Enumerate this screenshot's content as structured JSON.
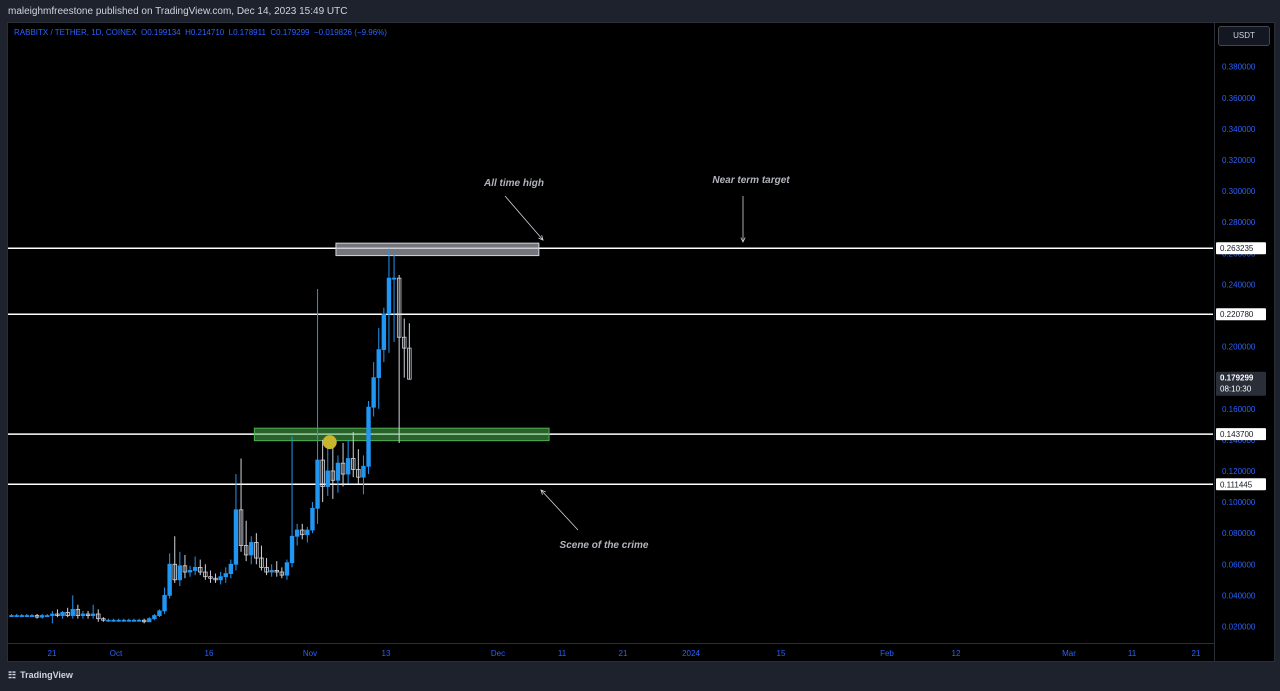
{
  "header": {
    "publisher_text": "maleighmfreestone published on TradingView.com, Dec 14, 2023 15:49 UTC"
  },
  "symbol": {
    "name": "RABBITX / TETHER, 1D, COINEX",
    "o_label": "O",
    "o_value": "0.199134",
    "h_label": "H",
    "h_value": "0.214710",
    "l_label": "L",
    "l_value": "0.178911",
    "c_label": "C",
    "c_value": "0.179299",
    "change": "−0.019826 (−9.96%)"
  },
  "currency_button": "USDT",
  "footer": {
    "logo_icon": "tradingview-logo-icon",
    "brand": "TradingView"
  },
  "colors": {
    "up": "#2196f3",
    "down": "#d1d4dc",
    "support_zone": "#4caf50",
    "target_zone": "#b2b5be",
    "highlight_dot": "#c9b52b"
  },
  "chart_data": {
    "type": "candlestick",
    "title": "RABBITX / TETHER, 1D, COINEX",
    "xlabel": "",
    "ylabel": "",
    "ylim": [
      0.01,
      0.392
    ],
    "y_ticks": [
      "0.380000",
      "0.360000",
      "0.340000",
      "0.320000",
      "0.300000",
      "0.280000",
      "0.260000",
      "0.240000",
      "0.220000",
      "0.200000",
      "0.180000",
      "0.160000",
      "0.140000",
      "0.120000",
      "0.100000",
      "0.080000",
      "0.060000",
      "0.040000",
      "0.020000"
    ],
    "x_ticks": [
      "21",
      "Oct",
      "16",
      "Nov",
      "13",
      "Dec",
      "11",
      "21",
      "2024",
      "15",
      "Feb",
      "12",
      "Mar",
      "11",
      "21"
    ],
    "horizontal_levels": [
      {
        "value": 0.263235,
        "label": "0.263235"
      },
      {
        "value": 0.22078,
        "label": "0.220780"
      },
      {
        "value": 0.1437,
        "label": "0.143700"
      },
      {
        "value": 0.111445,
        "label": "0.111445"
      }
    ],
    "last_price": {
      "value": 0.179299,
      "label": "0.179299",
      "countdown": "08:10:30"
    },
    "zones": [
      {
        "name": "support",
        "from": 0.1395,
        "to": 0.1475,
        "start_index": 48,
        "end_index": 105
      },
      {
        "name": "target",
        "from": 0.2585,
        "to": 0.2665,
        "start_index": 64,
        "end_index": 103
      }
    ],
    "annotations": [
      {
        "text": "All time high",
        "arrow_to_index": 60,
        "arrow_to_value": 0.263
      },
      {
        "text": "Near term target",
        "arrow_to_index": 82,
        "arrow_to_value": 0.263
      },
      {
        "text": "Scene of the crime",
        "arrow_to_index": 59,
        "arrow_to_value": 0.11
      }
    ],
    "marker": {
      "index": 62,
      "value": 0.1385
    },
    "candles": [
      {
        "o": 0.027,
        "h": 0.028,
        "l": 0.026,
        "c": 0.027
      },
      {
        "o": 0.027,
        "h": 0.028,
        "l": 0.026,
        "c": 0.027
      },
      {
        "o": 0.027,
        "h": 0.028,
        "l": 0.026,
        "c": 0.027
      },
      {
        "o": 0.027,
        "h": 0.028,
        "l": 0.026,
        "c": 0.027
      },
      {
        "o": 0.027,
        "h": 0.028,
        "l": 0.026,
        "c": 0.027
      },
      {
        "o": 0.027,
        "h": 0.028,
        "l": 0.025,
        "c": 0.026
      },
      {
        "o": 0.026,
        "h": 0.028,
        "l": 0.025,
        "c": 0.027
      },
      {
        "o": 0.027,
        "h": 0.028,
        "l": 0.026,
        "c": 0.027
      },
      {
        "o": 0.027,
        "h": 0.03,
        "l": 0.022,
        "c": 0.028
      },
      {
        "o": 0.028,
        "h": 0.031,
        "l": 0.026,
        "c": 0.027
      },
      {
        "o": 0.027,
        "h": 0.03,
        "l": 0.025,
        "c": 0.029
      },
      {
        "o": 0.029,
        "h": 0.032,
        "l": 0.026,
        "c": 0.027
      },
      {
        "o": 0.027,
        "h": 0.04,
        "l": 0.025,
        "c": 0.031
      },
      {
        "o": 0.031,
        "h": 0.034,
        "l": 0.025,
        "c": 0.027
      },
      {
        "o": 0.027,
        "h": 0.03,
        "l": 0.025,
        "c": 0.028
      },
      {
        "o": 0.028,
        "h": 0.03,
        "l": 0.025,
        "c": 0.027
      },
      {
        "o": 0.027,
        "h": 0.034,
        "l": 0.025,
        "c": 0.028
      },
      {
        "o": 0.028,
        "h": 0.031,
        "l": 0.023,
        "c": 0.025
      },
      {
        "o": 0.025,
        "h": 0.026,
        "l": 0.023,
        "c": 0.024
      },
      {
        "o": 0.024,
        "h": 0.025,
        "l": 0.023,
        "c": 0.024
      },
      {
        "o": 0.024,
        "h": 0.025,
        "l": 0.023,
        "c": 0.024
      },
      {
        "o": 0.024,
        "h": 0.025,
        "l": 0.023,
        "c": 0.024
      },
      {
        "o": 0.024,
        "h": 0.025,
        "l": 0.023,
        "c": 0.024
      },
      {
        "o": 0.024,
        "h": 0.025,
        "l": 0.023,
        "c": 0.024
      },
      {
        "o": 0.024,
        "h": 0.025,
        "l": 0.023,
        "c": 0.024
      },
      {
        "o": 0.024,
        "h": 0.025,
        "l": 0.023,
        "c": 0.024
      },
      {
        "o": 0.024,
        "h": 0.025,
        "l": 0.022,
        "c": 0.023
      },
      {
        "o": 0.023,
        "h": 0.026,
        "l": 0.023,
        "c": 0.025
      },
      {
        "o": 0.025,
        "h": 0.028,
        "l": 0.024,
        "c": 0.027
      },
      {
        "o": 0.027,
        "h": 0.031,
        "l": 0.026,
        "c": 0.03
      },
      {
        "o": 0.03,
        "h": 0.045,
        "l": 0.028,
        "c": 0.04
      },
      {
        "o": 0.04,
        "h": 0.067,
        "l": 0.038,
        "c": 0.06
      },
      {
        "o": 0.06,
        "h": 0.078,
        "l": 0.048,
        "c": 0.05
      },
      {
        "o": 0.05,
        "h": 0.068,
        "l": 0.046,
        "c": 0.059
      },
      {
        "o": 0.059,
        "h": 0.066,
        "l": 0.051,
        "c": 0.055
      },
      {
        "o": 0.055,
        "h": 0.059,
        "l": 0.052,
        "c": 0.056
      },
      {
        "o": 0.056,
        "h": 0.065,
        "l": 0.053,
        "c": 0.058
      },
      {
        "o": 0.058,
        "h": 0.063,
        "l": 0.053,
        "c": 0.055
      },
      {
        "o": 0.055,
        "h": 0.06,
        "l": 0.05,
        "c": 0.052
      },
      {
        "o": 0.052,
        "h": 0.056,
        "l": 0.048,
        "c": 0.051
      },
      {
        "o": 0.051,
        "h": 0.054,
        "l": 0.048,
        "c": 0.05
      },
      {
        "o": 0.05,
        "h": 0.055,
        "l": 0.047,
        "c": 0.052
      },
      {
        "o": 0.052,
        "h": 0.058,
        "l": 0.048,
        "c": 0.054
      },
      {
        "o": 0.054,
        "h": 0.063,
        "l": 0.051,
        "c": 0.06
      },
      {
        "o": 0.06,
        "h": 0.118,
        "l": 0.056,
        "c": 0.095
      },
      {
        "o": 0.095,
        "h": 0.128,
        "l": 0.068,
        "c": 0.072
      },
      {
        "o": 0.072,
        "h": 0.088,
        "l": 0.062,
        "c": 0.066
      },
      {
        "o": 0.066,
        "h": 0.078,
        "l": 0.06,
        "c": 0.074
      },
      {
        "o": 0.074,
        "h": 0.08,
        "l": 0.06,
        "c": 0.064
      },
      {
        "o": 0.064,
        "h": 0.072,
        "l": 0.056,
        "c": 0.058
      },
      {
        "o": 0.058,
        "h": 0.064,
        "l": 0.053,
        "c": 0.055
      },
      {
        "o": 0.055,
        "h": 0.06,
        "l": 0.052,
        "c": 0.056
      },
      {
        "o": 0.056,
        "h": 0.062,
        "l": 0.052,
        "c": 0.055
      },
      {
        "o": 0.055,
        "h": 0.058,
        "l": 0.051,
        "c": 0.053
      },
      {
        "o": 0.053,
        "h": 0.063,
        "l": 0.05,
        "c": 0.061
      },
      {
        "o": 0.061,
        "h": 0.142,
        "l": 0.058,
        "c": 0.078
      },
      {
        "o": 0.078,
        "h": 0.086,
        "l": 0.072,
        "c": 0.082
      },
      {
        "o": 0.082,
        "h": 0.086,
        "l": 0.076,
        "c": 0.079
      },
      {
        "o": 0.079,
        "h": 0.084,
        "l": 0.074,
        "c": 0.082
      },
      {
        "o": 0.082,
        "h": 0.1,
        "l": 0.08,
        "c": 0.096
      },
      {
        "o": 0.096,
        "h": 0.237,
        "l": 0.086,
        "c": 0.127
      },
      {
        "o": 0.127,
        "h": 0.14,
        "l": 0.1,
        "c": 0.11
      },
      {
        "o": 0.11,
        "h": 0.135,
        "l": 0.104,
        "c": 0.12
      },
      {
        "o": 0.12,
        "h": 0.135,
        "l": 0.102,
        "c": 0.114
      },
      {
        "o": 0.114,
        "h": 0.13,
        "l": 0.106,
        "c": 0.125
      },
      {
        "o": 0.125,
        "h": 0.138,
        "l": 0.11,
        "c": 0.118
      },
      {
        "o": 0.118,
        "h": 0.14,
        "l": 0.112,
        "c": 0.128
      },
      {
        "o": 0.128,
        "h": 0.145,
        "l": 0.116,
        "c": 0.121
      },
      {
        "o": 0.121,
        "h": 0.134,
        "l": 0.112,
        "c": 0.116
      },
      {
        "o": 0.116,
        "h": 0.13,
        "l": 0.105,
        "c": 0.123
      },
      {
        "o": 0.123,
        "h": 0.165,
        "l": 0.118,
        "c": 0.161
      },
      {
        "o": 0.161,
        "h": 0.19,
        "l": 0.155,
        "c": 0.18
      },
      {
        "o": 0.18,
        "h": 0.212,
        "l": 0.16,
        "c": 0.198
      },
      {
        "o": 0.198,
        "h": 0.225,
        "l": 0.19,
        "c": 0.221
      },
      {
        "o": 0.221,
        "h": 0.263,
        "l": 0.196,
        "c": 0.244
      },
      {
        "o": 0.244,
        "h": 0.26,
        "l": 0.203,
        "c": 0.244
      },
      {
        "o": 0.244,
        "h": 0.246,
        "l": 0.138,
        "c": 0.206
      },
      {
        "o": 0.206,
        "h": 0.218,
        "l": 0.18,
        "c": 0.199
      },
      {
        "o": 0.199,
        "h": 0.215,
        "l": 0.179,
        "c": 0.179
      }
    ]
  }
}
